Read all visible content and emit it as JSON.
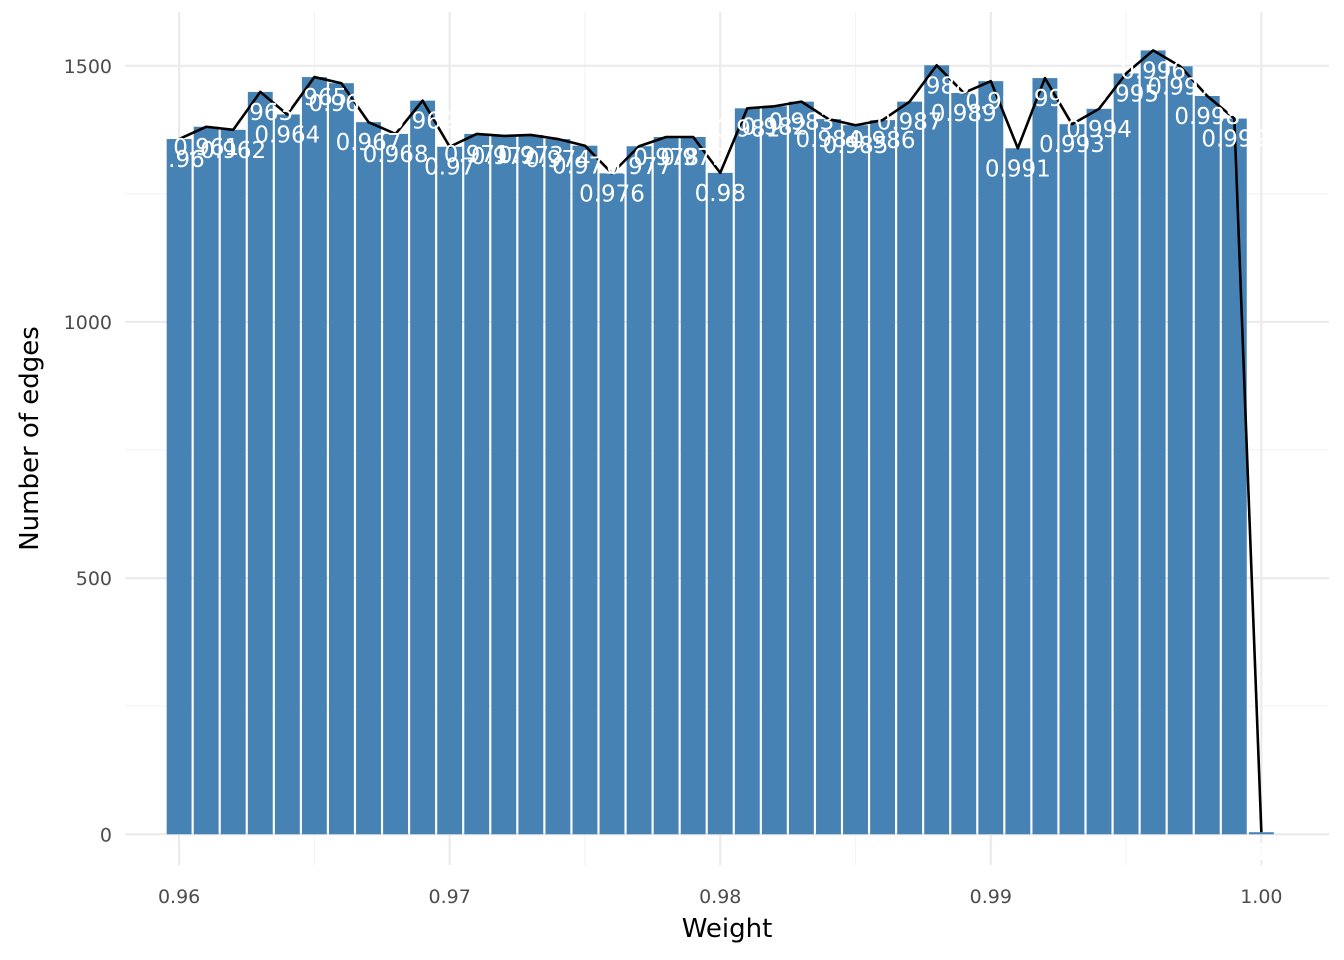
{
  "chart_data": {
    "type": "bar",
    "xlabel": "Weight",
    "ylabel": "Number of edges",
    "xlim": [
      0.958,
      1.0025
    ],
    "ylim": [
      -60,
      1605
    ],
    "x_ticks": [
      0.96,
      0.97,
      0.98,
      0.99,
      1.0
    ],
    "x_tick_labels": [
      "0.96",
      "0.97",
      "0.98",
      "0.99",
      "1.00"
    ],
    "y_ticks": [
      0,
      500,
      1000,
      1500
    ],
    "y_tick_labels": [
      "0",
      "500",
      "1000",
      "1500"
    ],
    "grid": true,
    "bar_color": "#4682B4",
    "line_color": "#000000",
    "bar_width": 0.00092,
    "x": [
      0.96,
      0.961,
      0.962,
      0.963,
      0.964,
      0.965,
      0.966,
      0.967,
      0.968,
      0.969,
      0.97,
      0.971,
      0.972,
      0.973,
      0.974,
      0.975,
      0.976,
      0.977,
      0.978,
      0.979,
      0.98,
      0.981,
      0.982,
      0.983,
      0.984,
      0.985,
      0.986,
      0.987,
      0.988,
      0.989,
      0.99,
      0.991,
      0.992,
      0.993,
      0.994,
      0.995,
      0.996,
      0.997,
      0.998,
      0.999,
      1.0
    ],
    "values": [
      1357,
      1381,
      1375,
      1449,
      1405,
      1478,
      1466,
      1390,
      1367,
      1432,
      1342,
      1367,
      1363,
      1365,
      1357,
      1344,
      1290,
      1343,
      1361,
      1361,
      1291,
      1417,
      1421,
      1430,
      1396,
      1384,
      1394,
      1430,
      1501,
      1447,
      1470,
      1339,
      1476,
      1386,
      1416,
      1485,
      1530,
      1499,
      1441,
      1397,
      4
    ],
    "labels": [
      "0.96",
      "0.961",
      "0.962",
      "0.963",
      "0.964",
      "0.965",
      "0.966",
      "0.967",
      "0.968",
      "0.969",
      "0.97",
      "0.971",
      "0.972",
      "0.973",
      "0.974",
      "0.975",
      "0.976",
      "0.977",
      "0.978",
      "0.979",
      "0.98",
      "0.981",
      "0.982",
      "0.983",
      "0.984",
      "0.985",
      "0.986",
      "0.987",
      "0.988",
      "0.989",
      "0.99",
      "0.991",
      "0.992",
      "0.993",
      "0.994",
      "0.995",
      "0.996",
      "0.997",
      "0.998",
      "0.999",
      "1"
    ],
    "line": {
      "x": [
        0.96,
        0.961,
        0.962,
        0.963,
        0.964,
        0.965,
        0.966,
        0.967,
        0.968,
        0.969,
        0.97,
        0.971,
        0.972,
        0.973,
        0.974,
        0.975,
        0.976,
        0.977,
        0.978,
        0.979,
        0.98,
        0.981,
        0.982,
        0.983,
        0.984,
        0.985,
        0.986,
        0.987,
        0.988,
        0.989,
        0.99,
        0.991,
        0.992,
        0.993,
        0.994,
        0.995,
        0.996,
        0.997,
        0.998,
        0.999,
        1.0
      ],
      "y": [
        1357,
        1381,
        1375,
        1449,
        1405,
        1478,
        1466,
        1390,
        1367,
        1432,
        1342,
        1367,
        1363,
        1365,
        1357,
        1344,
        1290,
        1343,
        1361,
        1361,
        1291,
        1417,
        1421,
        1430,
        1396,
        1384,
        1394,
        1430,
        1501,
        1447,
        1470,
        1339,
        1476,
        1386,
        1416,
        1485,
        1530,
        1499,
        1441,
        1397,
        4
      ]
    }
  }
}
